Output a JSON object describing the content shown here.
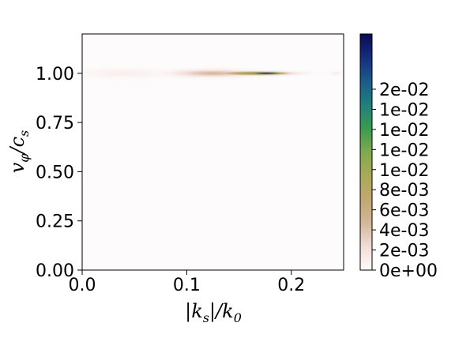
{
  "chart_data": {
    "type": "heatmap",
    "title": "",
    "xlabel": "|k_s|/k_0",
    "ylabel": "v_φ/c_s",
    "xlim": [
      0.0,
      0.25
    ],
    "ylim": [
      0.0,
      1.2
    ],
    "x_ticks": [
      {
        "value": 0.0,
        "label": "0.0"
      },
      {
        "value": 0.1,
        "label": "0.1"
      },
      {
        "value": 0.2,
        "label": "0.2"
      }
    ],
    "y_ticks": [
      {
        "value": 0.0,
        "label": "0.00"
      },
      {
        "value": 0.25,
        "label": "0.25"
      },
      {
        "value": 0.5,
        "label": "0.50"
      },
      {
        "value": 0.75,
        "label": "0.75"
      },
      {
        "value": 1.0,
        "label": "1.00"
      }
    ],
    "colorbar": {
      "colormap": "gist_earth_r",
      "range": [
        0.0,
        0.0235
      ],
      "ticks": [
        {
          "value": 0.0,
          "label": "0e+00"
        },
        {
          "value": 0.002,
          "label": "2e-03"
        },
        {
          "value": 0.004,
          "label": "4e-03"
        },
        {
          "value": 0.006,
          "label": "6e-03"
        },
        {
          "value": 0.008,
          "label": "8e-03"
        },
        {
          "value": 0.01,
          "label": "1e-02"
        },
        {
          "value": 0.012,
          "label": "1e-02"
        },
        {
          "value": 0.014,
          "label": "1e-02"
        },
        {
          "value": 0.016,
          "label": "1e-02"
        },
        {
          "value": 0.018,
          "label": "2e-02"
        }
      ],
      "stops": [
        "#fdfbfb",
        "#f1ddd6",
        "#d5b698",
        "#c1a870",
        "#aaaa56",
        "#7faa4f",
        "#3c9a4f",
        "#1f7f7e",
        "#1b5b8c",
        "#152d7d",
        "#0a0a52"
      ]
    },
    "features": [
      {
        "k_center": 0.04,
        "k_halfwidth": 0.05,
        "v_center": 1.0,
        "v_halfwidth": 0.03,
        "peak": 0.0009
      },
      {
        "k_center": 0.125,
        "k_halfwidth": 0.045,
        "v_center": 1.0,
        "v_halfwidth": 0.022,
        "peak": 0.0045
      },
      {
        "k_center": 0.165,
        "k_halfwidth": 0.04,
        "v_center": 1.0,
        "v_halfwidth": 0.011,
        "peak": 0.012
      },
      {
        "k_center": 0.176,
        "k_halfwidth": 0.022,
        "v_center": 1.0,
        "v_halfwidth": 0.007,
        "peak": 0.023
      },
      {
        "k_center": 0.243,
        "k_halfwidth": 0.006,
        "v_center": 1.0,
        "v_halfwidth": 0.012,
        "peak": 0.001
      }
    ]
  }
}
